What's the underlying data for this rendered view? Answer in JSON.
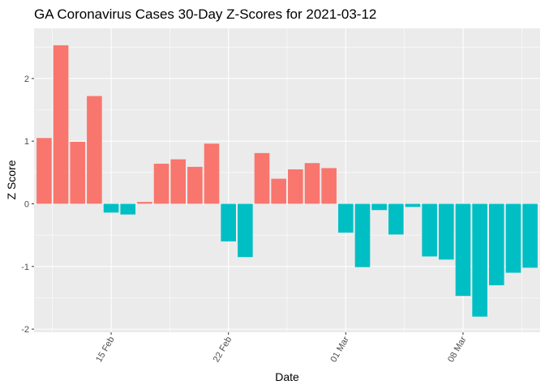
{
  "chart_data": {
    "type": "bar",
    "title": "GA Coronavirus Cases 30-Day Z-Scores for 2021-03-12",
    "xlabel": "Date",
    "ylabel": "Z Score",
    "x": [
      "2021-02-11",
      "2021-02-12",
      "2021-02-13",
      "2021-02-14",
      "2021-02-15",
      "2021-02-16",
      "2021-02-17",
      "2021-02-18",
      "2021-02-19",
      "2021-02-20",
      "2021-02-21",
      "2021-02-22",
      "2021-02-23",
      "2021-02-24",
      "2021-02-25",
      "2021-02-26",
      "2021-02-27",
      "2021-02-28",
      "2021-03-01",
      "2021-03-02",
      "2021-03-03",
      "2021-03-04",
      "2021-03-05",
      "2021-03-06",
      "2021-03-07",
      "2021-03-08",
      "2021-03-09",
      "2021-03-10",
      "2021-03-11",
      "2021-03-12"
    ],
    "values": [
      1.05,
      2.53,
      0.99,
      1.72,
      -0.14,
      -0.17,
      0.03,
      0.64,
      0.71,
      0.59,
      0.96,
      -0.6,
      -0.85,
      0.81,
      0.4,
      0.55,
      0.65,
      0.57,
      -0.46,
      -1.01,
      -0.1,
      -0.49,
      -0.05,
      -0.84,
      -0.89,
      -1.47,
      -1.8,
      -1.3,
      -1.1,
      -1.02
    ],
    "colors": {
      "positive": "#F8766D",
      "negative": "#00BFC4"
    },
    "ylim": [
      -2.05,
      2.8
    ],
    "yticks": [
      -2,
      -1,
      0,
      1,
      2
    ],
    "xticks": [
      {
        "date": "2021-02-15",
        "label": "15 Feb"
      },
      {
        "date": "2021-02-22",
        "label": "22 Feb"
      },
      {
        "date": "2021-03-01",
        "label": "01 Mar"
      },
      {
        "date": "2021-03-08",
        "label": "08 Mar"
      }
    ],
    "grid": true,
    "legend": "none"
  }
}
